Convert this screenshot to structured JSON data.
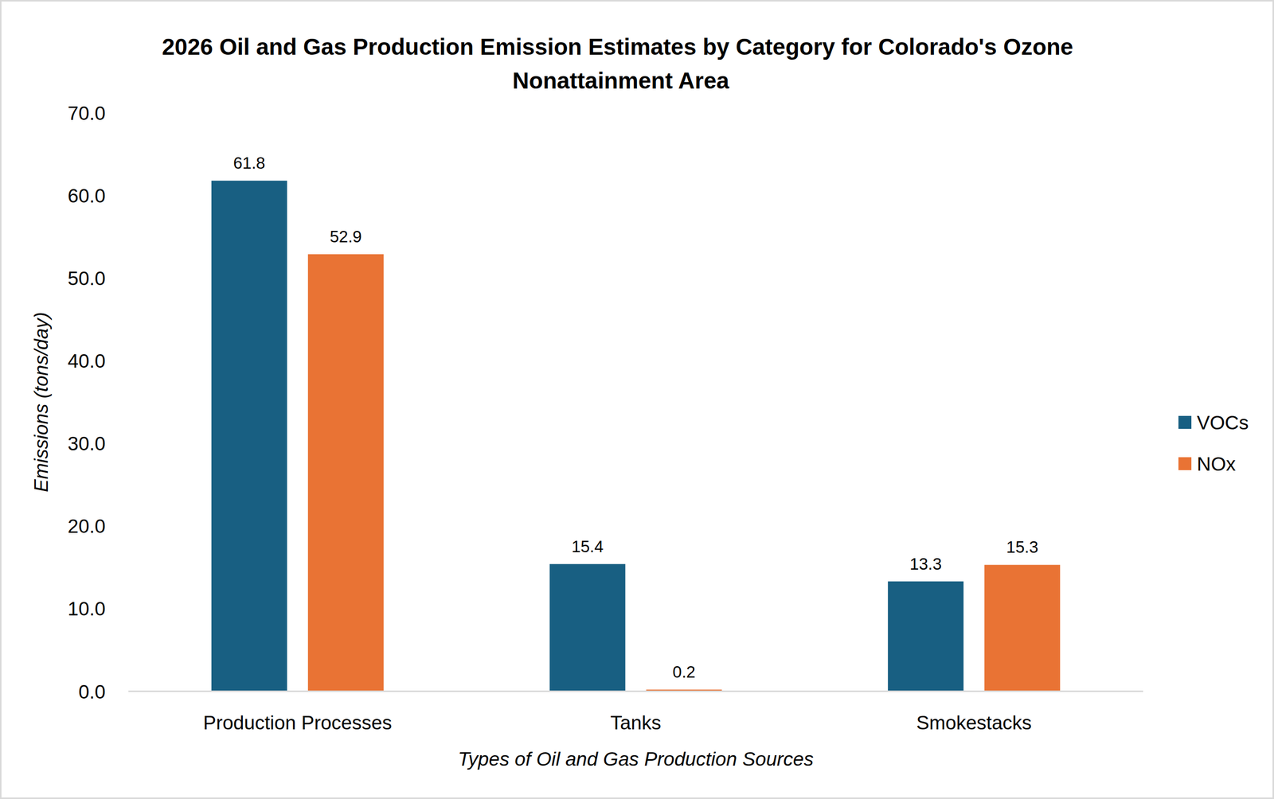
{
  "chart_data": {
    "type": "bar",
    "title": "2026 Oil and Gas Production Emission Estimates by Category for Colorado's Ozone Nonattainment Area",
    "x_label": "Types of Oil and Gas Production Sources",
    "y_label": "Emissions (tons/day)",
    "categories": [
      "Production Processes",
      "Tanks",
      "Smokestacks"
    ],
    "series": [
      {
        "name": "VOCs",
        "color": "#185f82",
        "values": [
          61.8,
          15.4,
          13.3
        ]
      },
      {
        "name": "NOx",
        "color": "#e97334",
        "values": [
          52.9,
          0.2,
          15.3
        ]
      }
    ],
    "ylim": [
      0,
      70
    ],
    "yticks": [
      {
        "value": 0,
        "label": "0.0"
      },
      {
        "value": 10,
        "label": "10.0"
      },
      {
        "value": 20,
        "label": "20.0"
      },
      {
        "value": 30,
        "label": "30.0"
      },
      {
        "value": 40,
        "label": "40.0"
      },
      {
        "value": 50,
        "label": "50.0"
      },
      {
        "value": 60,
        "label": "60.0"
      },
      {
        "value": 70,
        "label": "70.0"
      }
    ],
    "grid": false,
    "data_labels": true,
    "legend": "right"
  }
}
